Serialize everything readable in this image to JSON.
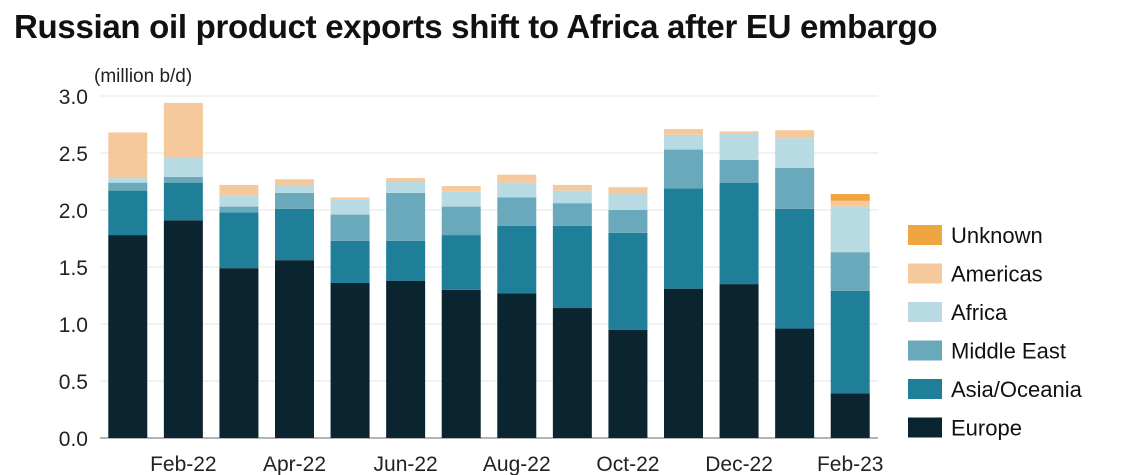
{
  "chart_data": {
    "type": "bar",
    "stacked": true,
    "title": "Russian oil product exports shift to Africa after EU embargo",
    "ylabel": "(million b/d)",
    "ylim": [
      0,
      3.0
    ],
    "yticks": [
      "0.0",
      "0.5",
      "1.0",
      "1.5",
      "2.0",
      "2.5",
      "3.0"
    ],
    "categories": [
      "Jan-22",
      "Feb-22",
      "Mar-22",
      "Apr-22",
      "May-22",
      "Jun-22",
      "Jul-22",
      "Aug-22",
      "Sep-22",
      "Oct-22",
      "Nov-22",
      "Dec-22",
      "Jan-23",
      "Feb-23"
    ],
    "xtick_labels": [
      "Feb-22",
      "Apr-22",
      "Jun-22",
      "Aug-22",
      "Oct-22",
      "Dec-22",
      "Feb-23"
    ],
    "legend_position": "right",
    "series": [
      {
        "name": "Europe",
        "color": "#0b2530",
        "values": [
          1.78,
          1.91,
          1.49,
          1.56,
          1.36,
          1.38,
          1.3,
          1.27,
          1.14,
          0.95,
          1.31,
          1.35,
          0.96,
          0.39
        ]
      },
      {
        "name": "Asia/Oceania",
        "color": "#1f7f99",
        "values": [
          0.39,
          0.33,
          0.49,
          0.45,
          0.37,
          0.35,
          0.48,
          0.59,
          0.72,
          0.85,
          0.88,
          0.89,
          1.05,
          0.9
        ]
      },
      {
        "name": "Middle East",
        "color": "#6aa9bb",
        "values": [
          0.07,
          0.05,
          0.05,
          0.14,
          0.23,
          0.42,
          0.25,
          0.25,
          0.2,
          0.2,
          0.34,
          0.2,
          0.36,
          0.34
        ]
      },
      {
        "name": "Africa",
        "color": "#b8dbe3",
        "values": [
          0.04,
          0.17,
          0.1,
          0.07,
          0.13,
          0.1,
          0.13,
          0.13,
          0.11,
          0.14,
          0.13,
          0.23,
          0.26,
          0.4
        ]
      },
      {
        "name": "Americas",
        "color": "#f5c99b",
        "values": [
          0.4,
          0.48,
          0.09,
          0.05,
          0.02,
          0.03,
          0.05,
          0.07,
          0.05,
          0.06,
          0.05,
          0.02,
          0.07,
          0.05
        ]
      },
      {
        "name": "Unknown",
        "color": "#f0a640",
        "values": [
          0,
          0,
          0,
          0,
          0,
          0,
          0,
          0,
          0,
          0,
          0,
          0,
          0,
          0.06
        ]
      }
    ]
  }
}
